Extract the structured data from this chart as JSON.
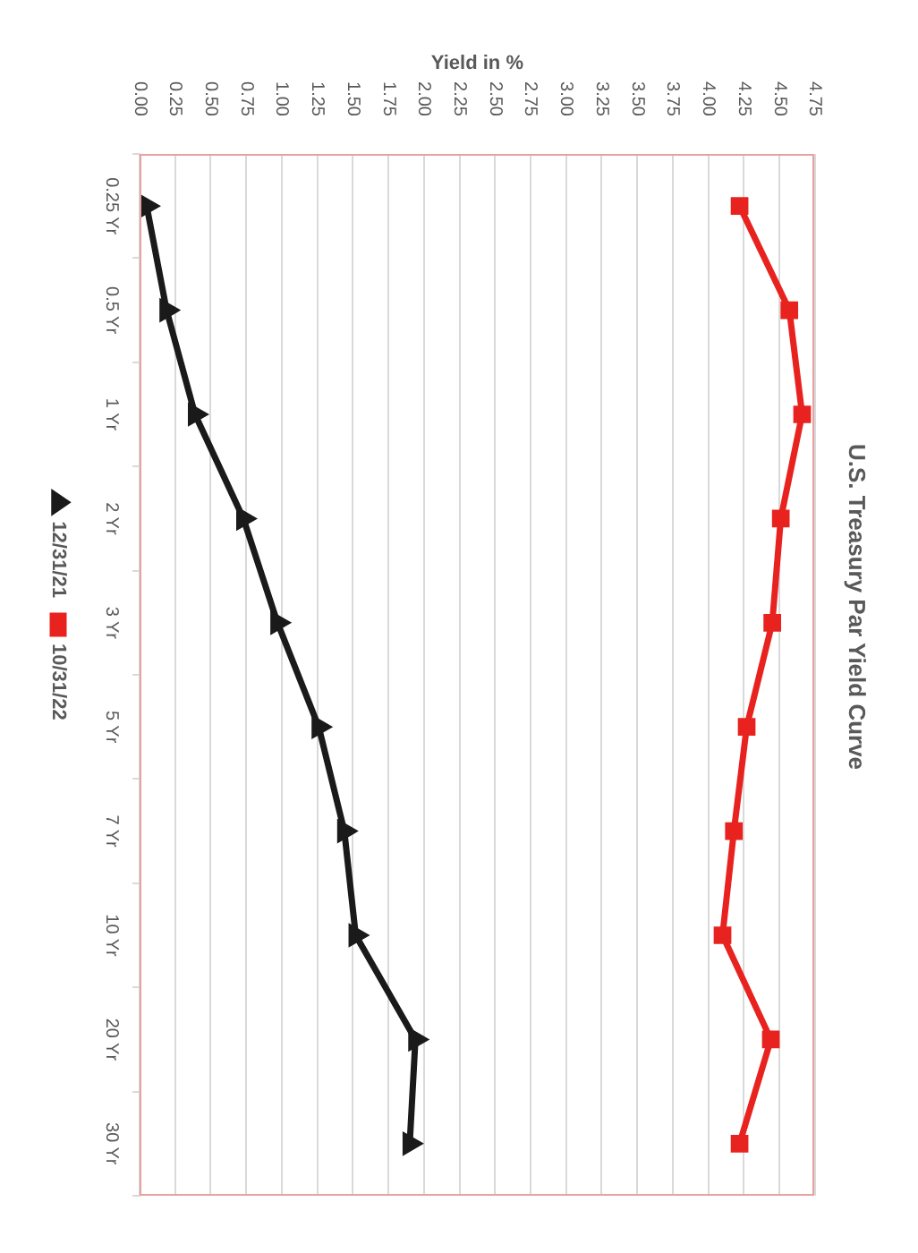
{
  "chart_data": {
    "type": "line",
    "orientation": "horizontal",
    "title": "U.S. Treasury Par Yield Curve",
    "xlabel": "Yield in %",
    "categories": [
      "0.25 Yr",
      "0.5 Yr",
      "1 Yr",
      "2 Yr",
      "3 Yr",
      "5 Yr",
      "7 Yr",
      "10 Yr",
      "20 Yr",
      "30 Yr"
    ],
    "series": [
      {
        "name": "12/31/21",
        "color": "#1a1a1a",
        "marker": "triangle",
        "values": [
          0.05,
          0.19,
          0.39,
          0.73,
          0.97,
          1.26,
          1.44,
          1.52,
          1.94,
          1.9
        ]
      },
      {
        "name": "10/31/22",
        "color": "#e8231f",
        "marker": "square",
        "values": [
          4.22,
          4.57,
          4.66,
          4.51,
          4.45,
          4.27,
          4.18,
          4.1,
          4.44,
          4.22
        ]
      }
    ],
    "xlim": [
      0,
      4.75
    ],
    "xticks": [
      {
        "value": 0,
        "label": "0.00"
      },
      {
        "value": 0.25,
        "label": "0.25"
      },
      {
        "value": 0.5,
        "label": "0.50"
      },
      {
        "value": 0.75,
        "label": "0.75"
      },
      {
        "value": 1,
        "label": "1.00"
      },
      {
        "value": 1.25,
        "label": "1.25"
      },
      {
        "value": 1.5,
        "label": "1.50"
      },
      {
        "value": 1.75,
        "label": "1.75"
      },
      {
        "value": 2,
        "label": "2.00"
      },
      {
        "value": 2.25,
        "label": "2.25"
      },
      {
        "value": 2.5,
        "label": "2.50"
      },
      {
        "value": 2.75,
        "label": "2.75"
      },
      {
        "value": 3,
        "label": "3.00"
      },
      {
        "value": 3.25,
        "label": "3.25"
      },
      {
        "value": 3.5,
        "label": "3.50"
      },
      {
        "value": 3.75,
        "label": "3.75"
      },
      {
        "value": 4,
        "label": "4.00"
      },
      {
        "value": 4.25,
        "label": "4.25"
      },
      {
        "value": 4.5,
        "label": "4.50"
      },
      {
        "value": 4.75,
        "label": "4.75"
      }
    ],
    "grid": "x",
    "legend": "left"
  }
}
